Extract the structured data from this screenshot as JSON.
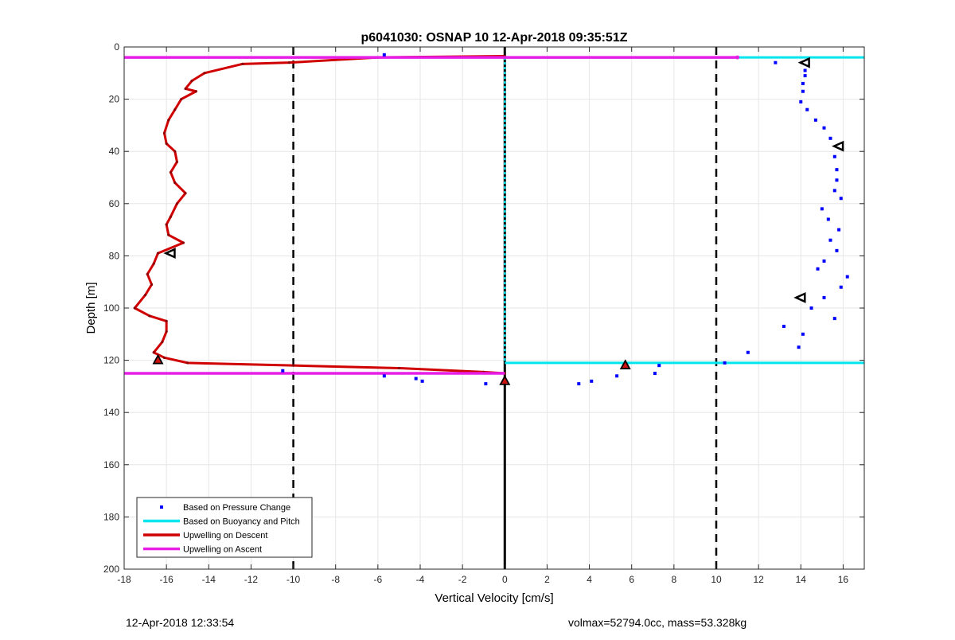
{
  "chart_data": {
    "type": "scatter",
    "title": "p6041030: OSNAP 10 12-Apr-2018 09:35:51Z",
    "xlabel": "Vertical Velocity [cm/s]",
    "ylabel": "Depth [m]",
    "xlim": [
      -18,
      17
    ],
    "ylim": [
      0,
      200
    ],
    "y_reversed": true,
    "grid": true,
    "x_ticks": [
      -18,
      -16,
      -14,
      -12,
      -10,
      -8,
      -6,
      -4,
      -2,
      0,
      2,
      4,
      6,
      8,
      10,
      12,
      14,
      16
    ],
    "y_ticks": [
      0,
      20,
      40,
      60,
      80,
      100,
      120,
      140,
      160,
      180,
      200
    ],
    "legend_position": "bottom-left",
    "reference_lines": {
      "dashed_x": [
        -10,
        10
      ],
      "solid_x": 0
    },
    "series": [
      {
        "name": "Based on Pressure Change",
        "kind": "points",
        "color": "#0000ff",
        "points": [
          [
            -5.7,
            3
          ],
          [
            12.8,
            6
          ],
          [
            14.2,
            9
          ],
          [
            14.2,
            11
          ],
          [
            14.1,
            14
          ],
          [
            14.1,
            17
          ],
          [
            14.0,
            21
          ],
          [
            14.3,
            24
          ],
          [
            14.7,
            28
          ],
          [
            15.1,
            31
          ],
          [
            15.4,
            35
          ],
          [
            15.8,
            38
          ],
          [
            15.6,
            42
          ],
          [
            15.7,
            47
          ],
          [
            15.7,
            51
          ],
          [
            15.6,
            55
          ],
          [
            15.9,
            58
          ],
          [
            15.0,
            62
          ],
          [
            15.3,
            66
          ],
          [
            15.8,
            70
          ],
          [
            15.4,
            74
          ],
          [
            15.7,
            78
          ],
          [
            15.1,
            82
          ],
          [
            14.8,
            85
          ],
          [
            16.2,
            88
          ],
          [
            15.9,
            92
          ],
          [
            15.1,
            96
          ],
          [
            14.5,
            100
          ],
          [
            15.6,
            104
          ],
          [
            13.2,
            107
          ],
          [
            14.1,
            110
          ],
          [
            13.9,
            115
          ],
          [
            11.5,
            117
          ],
          [
            10.4,
            121
          ],
          [
            7.3,
            122
          ],
          [
            7.1,
            125
          ],
          [
            5.3,
            126
          ],
          [
            4.1,
            128
          ],
          [
            3.5,
            129
          ],
          [
            -10.5,
            124
          ],
          [
            -5.7,
            126
          ],
          [
            -4.2,
            127
          ],
          [
            -3.9,
            128
          ],
          [
            -0.9,
            129
          ],
          [
            0.0,
            128
          ]
        ]
      },
      {
        "name": "Based on Buoyancy and Pitch",
        "kind": "line",
        "color": "#00e5ee",
        "points": [
          [
            0,
            4
          ],
          [
            17,
            4
          ],
          [
            0,
            121
          ],
          [
            17,
            121
          ]
        ]
      },
      {
        "name": "Upwelling on Descent",
        "kind": "line",
        "color": "#d10000",
        "points": [
          [
            0,
            3.5
          ],
          [
            -6,
            4
          ],
          [
            -10.2,
            6
          ],
          [
            -12.4,
            6.5
          ],
          [
            -14.2,
            10
          ],
          [
            -14.8,
            13
          ],
          [
            -15.1,
            16
          ],
          [
            -14.6,
            17
          ],
          [
            -15.3,
            20
          ],
          [
            -15.6,
            24
          ],
          [
            -15.9,
            28
          ],
          [
            -16.1,
            33
          ],
          [
            -16.0,
            37
          ],
          [
            -15.6,
            40
          ],
          [
            -15.5,
            44
          ],
          [
            -15.8,
            48
          ],
          [
            -15.6,
            52
          ],
          [
            -15.1,
            56
          ],
          [
            -15.5,
            60
          ],
          [
            -15.8,
            65
          ],
          [
            -16.0,
            68
          ],
          [
            -15.9,
            72
          ],
          [
            -15.2,
            75
          ],
          [
            -16.4,
            79
          ],
          [
            -16.6,
            83
          ],
          [
            -16.9,
            87
          ],
          [
            -16.7,
            91
          ],
          [
            -17.0,
            95
          ],
          [
            -17.5,
            100
          ],
          [
            -16.8,
            103
          ],
          [
            -16.0,
            105
          ],
          [
            -16.0,
            109
          ],
          [
            -16.2,
            113
          ],
          [
            -16.6,
            117
          ],
          [
            -16.1,
            119
          ],
          [
            -15.0,
            121
          ],
          [
            -10.0,
            122
          ],
          [
            -5.0,
            123
          ],
          [
            -1.0,
            124.5
          ],
          [
            0,
            125
          ]
        ]
      },
      {
        "name": "Upwelling on Ascent",
        "kind": "line",
        "color": "#e61ee6",
        "points": [
          [
            -18,
            4
          ],
          [
            11,
            4
          ],
          [
            -18,
            125
          ],
          [
            0,
            125
          ]
        ]
      }
    ],
    "markers": [
      {
        "shape": "triangle-left",
        "outline": "#000000",
        "points": [
          [
            14.2,
            6
          ],
          [
            15.8,
            38
          ],
          [
            -15.8,
            79
          ],
          [
            14.0,
            96
          ]
        ]
      },
      {
        "shape": "triangle-up",
        "fill": "#cc1111",
        "outline": "#000000",
        "points": [
          [
            -16.4,
            120
          ],
          [
            5.7,
            122
          ],
          [
            0.0,
            128
          ]
        ]
      }
    ]
  },
  "footer": {
    "left_text": "12-Apr-2018 12:33:54",
    "right_text": "volmax=52794.0cc, mass=53.328kg"
  }
}
